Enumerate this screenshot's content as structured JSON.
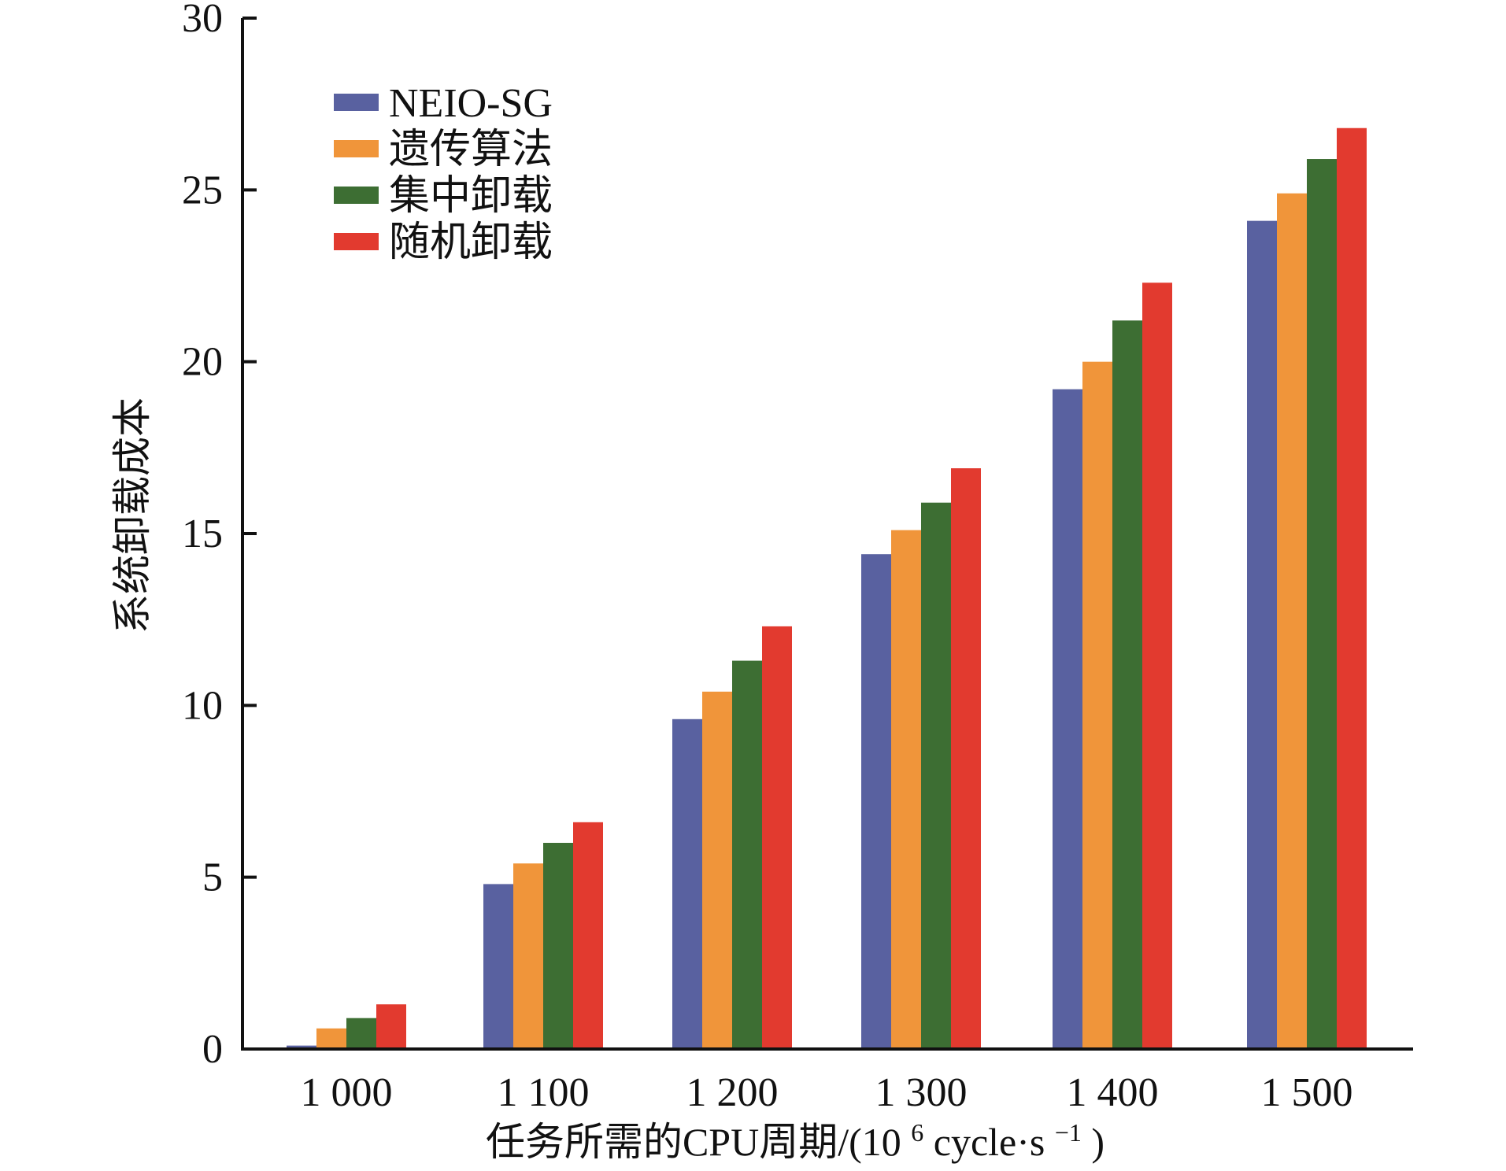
{
  "chart_data": {
    "type": "bar",
    "categories": [
      "1 000",
      "1 100",
      "1 200",
      "1 300",
      "1 400",
      "1 500"
    ],
    "series": [
      {
        "name": "NEIO-SG",
        "color": "#5961a0",
        "values": [
          0.1,
          4.8,
          9.6,
          14.4,
          19.2,
          24.1
        ]
      },
      {
        "name": "遗传算法",
        "color": "#f0953a",
        "values": [
          0.6,
          5.4,
          10.4,
          15.1,
          20.0,
          24.9
        ]
      },
      {
        "name": "集中卸载",
        "color": "#3d6e33",
        "values": [
          0.9,
          6.0,
          11.3,
          15.9,
          21.2,
          25.9
        ]
      },
      {
        "name": "随机卸载",
        "color": "#e23a2f",
        "values": [
          1.3,
          6.6,
          12.3,
          16.9,
          22.3,
          26.8
        ]
      }
    ],
    "yticks": [
      0,
      5,
      10,
      15,
      20,
      25,
      30
    ],
    "ylim": [
      0,
      30
    ],
    "ylabel": "系统卸载成本",
    "xlabel": {
      "prefix": "任务所需的CPU周期/(10",
      "exp1": "6",
      "mid": " cycle·s",
      "exp2": "−1",
      "suffix": ")"
    },
    "title": "",
    "legend_position": "top-left",
    "grid": false
  }
}
